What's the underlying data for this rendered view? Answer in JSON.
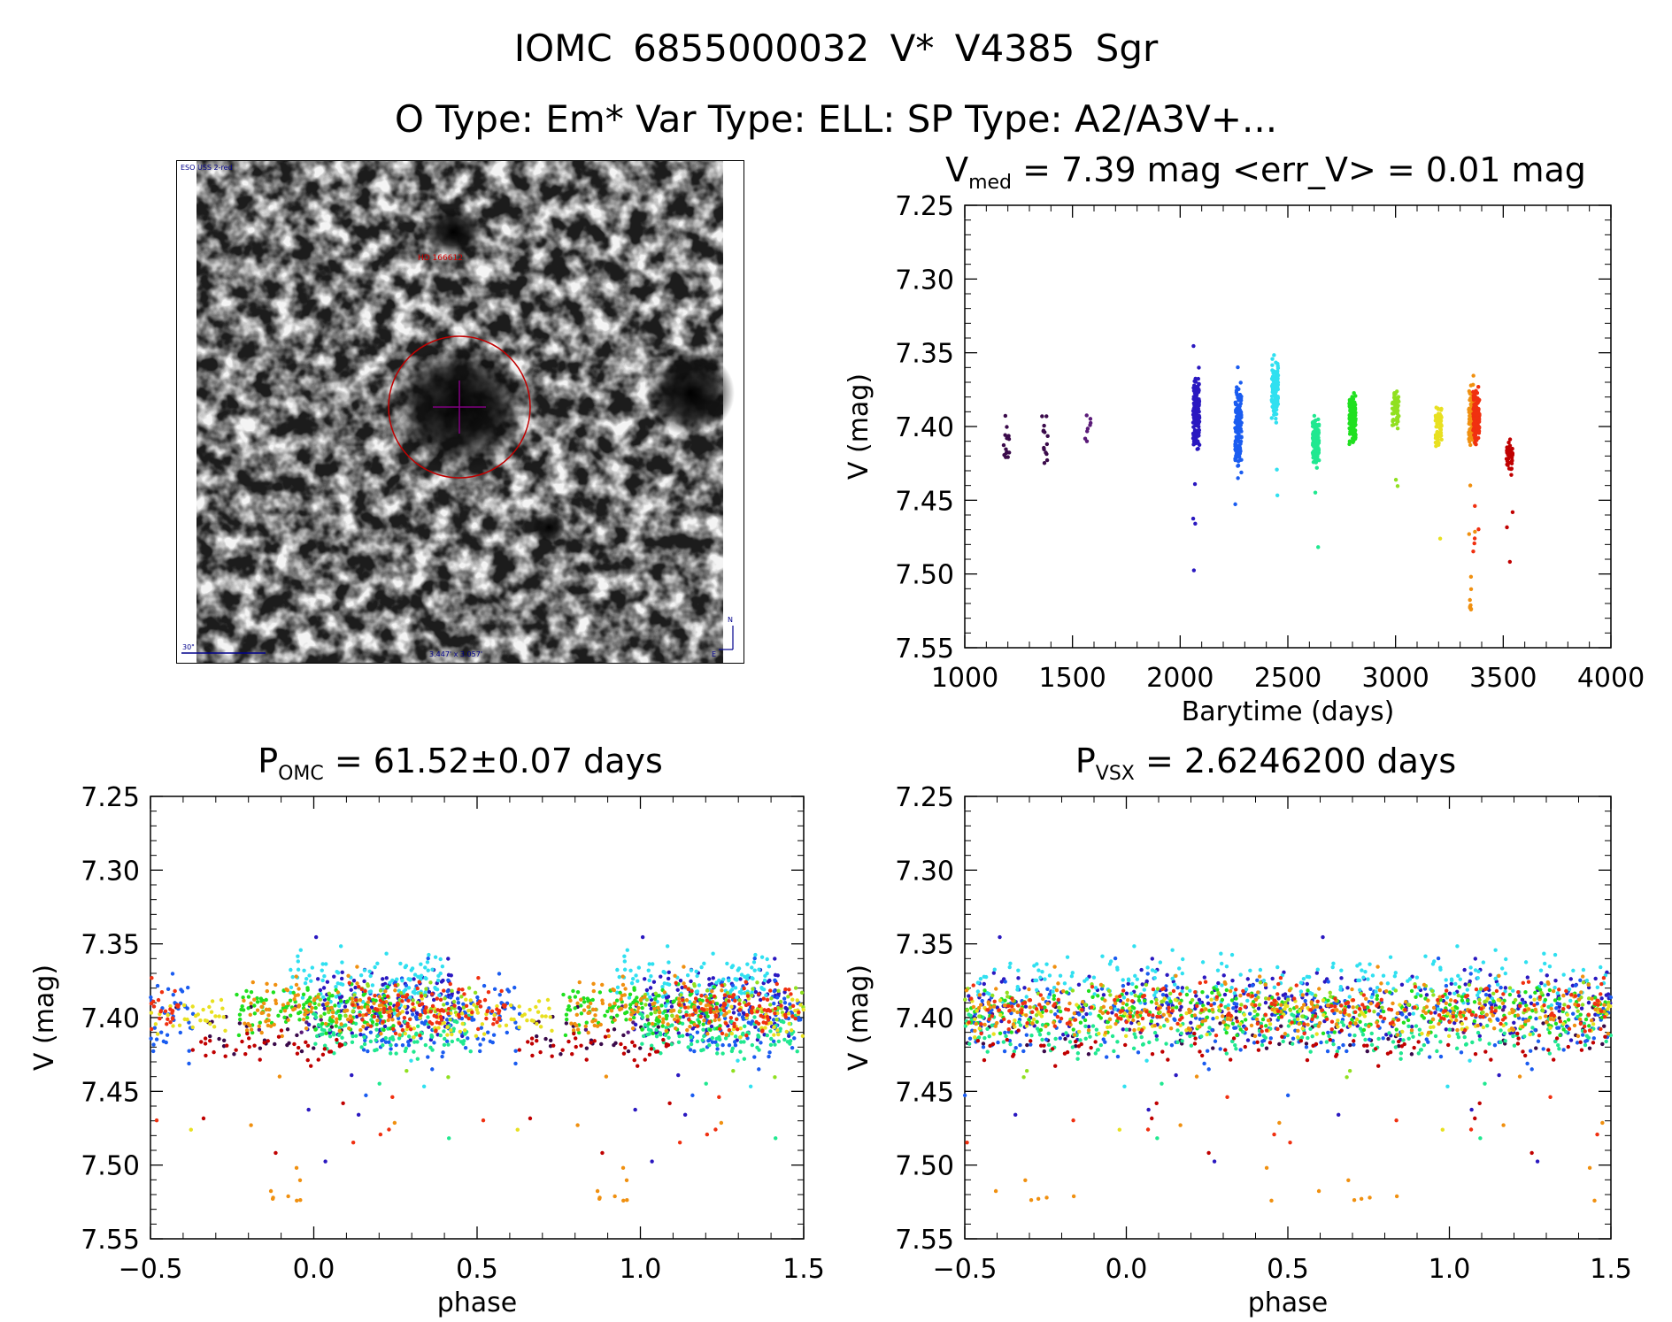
{
  "header": {
    "title": "IOMC 6855000032   V* V4385 Sgr",
    "subtitle": "O Type: Em*  Var Type: ELL:  SP Type: A2/A3V+..."
  },
  "image_panel": {
    "survey_label": "ESO USS 2-red",
    "target_label": "HD 166612",
    "scale_label": "30\"",
    "size_label": "3.447' x 3.057'",
    "north_label": "N",
    "east_label": "E"
  },
  "colors": {
    "palette": [
      "#3a0a4a",
      "#5a1a78",
      "#2a18c0",
      "#1a5cf0",
      "#1aa0f0",
      "#30e0f0",
      "#20e890",
      "#20e020",
      "#90e020",
      "#e8e020",
      "#f09010",
      "#f03010",
      "#c00000"
    ],
    "circle": "#c00000",
    "crosshair": "#800080"
  },
  "chart_data": [
    {
      "id": "lightcurve",
      "type": "scatter",
      "title_main": "V",
      "title_sub": "med",
      "title_rest": " = 7.39 mag <err_V> = 0.01 mag",
      "xlabel": "Barytime (days)",
      "ylabel": "V (mag)",
      "xlim": [
        1000,
        4000
      ],
      "ylim": [
        7.25,
        7.55
      ],
      "y_inverted": true,
      "xticks": [
        1000,
        1500,
        2000,
        2500,
        3000,
        3500,
        4000
      ],
      "xtick_labels": [
        "1000",
        "1500",
        "2000",
        "2500",
        "3000",
        "3500",
        "4000"
      ],
      "yticks": [
        7.25,
        7.3,
        7.35,
        7.4,
        7.45,
        7.5,
        7.55
      ],
      "ytick_labels": [
        "7.25",
        "7.30",
        "7.35",
        "7.40",
        "7.45",
        "7.50",
        "7.55"
      ],
      "groups": [
        {
          "t": 1195,
          "mean": 7.41,
          "spread": 0.035,
          "n": 14,
          "color": 0
        },
        {
          "t": 1370,
          "mean": 7.41,
          "spread": 0.05,
          "n": 14,
          "color": 0
        },
        {
          "t": 1570,
          "mean": 7.4,
          "spread": 0.025,
          "n": 8,
          "color": 1
        },
        {
          "t": 2075,
          "mean": 7.39,
          "spread": 0.04,
          "n": 140,
          "color": 2
        },
        {
          "t": 2270,
          "mean": 7.4,
          "spread": 0.045,
          "n": 140,
          "color": 3
        },
        {
          "t": 2440,
          "mean": 7.375,
          "spread": 0.03,
          "n": 110,
          "color": 5
        },
        {
          "t": 2630,
          "mean": 7.41,
          "spread": 0.03,
          "n": 110,
          "color": 6
        },
        {
          "t": 2800,
          "mean": 7.395,
          "spread": 0.025,
          "n": 130,
          "color": 7
        },
        {
          "t": 3000,
          "mean": 7.39,
          "spread": 0.02,
          "n": 50,
          "color": 8
        },
        {
          "t": 3200,
          "mean": 7.4,
          "spread": 0.025,
          "n": 70,
          "color": 9
        },
        {
          "t": 3355,
          "mean": 7.395,
          "spread": 0.03,
          "n": 120,
          "color": 10
        },
        {
          "t": 3375,
          "mean": 7.395,
          "spread": 0.03,
          "n": 120,
          "color": 11
        },
        {
          "t": 3530,
          "mean": 7.42,
          "spread": 0.02,
          "n": 40,
          "color": 12
        }
      ]
    },
    {
      "id": "phase_omc",
      "type": "scatter",
      "title_main": "P",
      "title_sub": "OMC",
      "title_rest": " = 61.52±0.07 days",
      "xlabel": "phase",
      "ylabel": "V (mag)",
      "period_days": 61.52,
      "xlim": [
        -0.5,
        1.5
      ],
      "ylim": [
        7.25,
        7.55
      ],
      "y_inverted": true,
      "xticks": [
        -0.5,
        0.0,
        0.5,
        1.0,
        1.5
      ],
      "xtick_labels": [
        "−0.5",
        "0.0",
        "0.5",
        "1.0",
        "1.5"
      ],
      "yticks": [
        7.25,
        7.3,
        7.35,
        7.4,
        7.45,
        7.5,
        7.55
      ],
      "ytick_labels": [
        "7.25",
        "7.30",
        "7.35",
        "7.40",
        "7.45",
        "7.50",
        "7.55"
      ]
    },
    {
      "id": "phase_vsx",
      "type": "scatter",
      "title_main": "P",
      "title_sub": "VSX",
      "title_rest": " = 2.6246200 days",
      "xlabel": "phase",
      "ylabel": "V (mag)",
      "period_days": 2.62462,
      "xlim": [
        -0.5,
        1.5
      ],
      "ylim": [
        7.25,
        7.55
      ],
      "y_inverted": true,
      "xticks": [
        -0.5,
        0.0,
        0.5,
        1.0,
        1.5
      ],
      "xtick_labels": [
        "−0.5",
        "0.0",
        "0.5",
        "1.0",
        "1.5"
      ],
      "yticks": [
        7.25,
        7.3,
        7.35,
        7.4,
        7.45,
        7.5,
        7.55
      ],
      "ytick_labels": [
        "7.25",
        "7.30",
        "7.35",
        "7.40",
        "7.45",
        "7.50",
        "7.55"
      ]
    }
  ]
}
